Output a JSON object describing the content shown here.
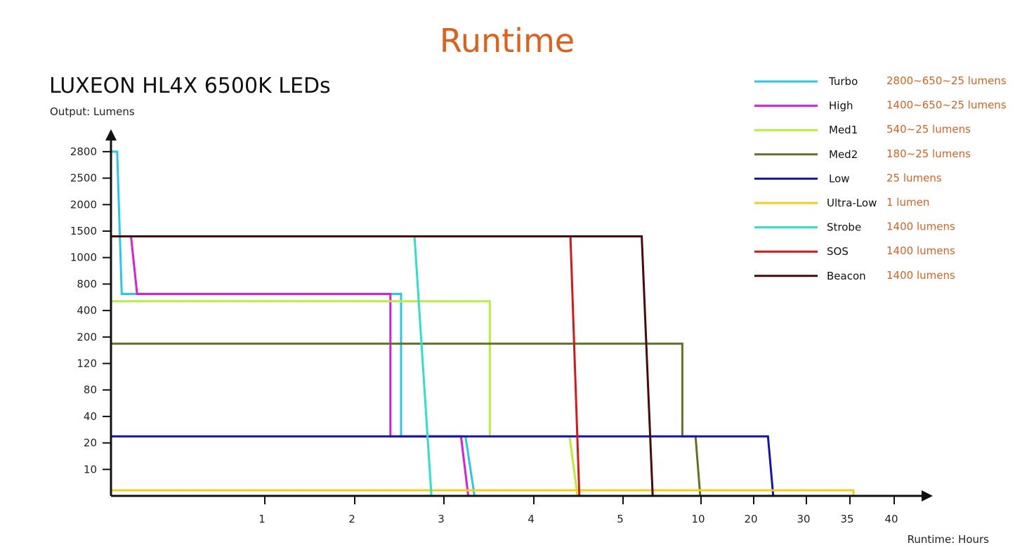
{
  "chart_data": {
    "type": "line",
    "title": "Runtime",
    "subtitle": "LUXEON HL4X 6500K LEDs",
    "ylabel": "Output: Lumens",
    "xlabel": "Runtime: Hours",
    "y_ticks": [
      10,
      20,
      40,
      80,
      120,
      200,
      400,
      800,
      1000,
      1500,
      2000,
      2500,
      2800
    ],
    "x_ticks": [
      1,
      2,
      3,
      4,
      5,
      10,
      20,
      30,
      35,
      40
    ],
    "xlim": [
      0,
      40
    ],
    "ylim": [
      0,
      2800
    ],
    "grid": false,
    "legend_placement": "top-right",
    "series": [
      {
        "name": "Turbo",
        "spec": "2800~650~25 lumens",
        "color": "#29c8e8",
        "points": [
          [
            0,
            2800
          ],
          [
            0.04,
            2800
          ],
          [
            0.07,
            650
          ],
          [
            2.52,
            650
          ],
          [
            2.52,
            25
          ],
          [
            3.24,
            25
          ],
          [
            3.34,
            0
          ]
        ]
      },
      {
        "name": "High",
        "spec": "1400~650~25 lumens",
        "color": "#d81fd8",
        "points": [
          [
            0,
            1400
          ],
          [
            0.13,
            1400
          ],
          [
            0.17,
            650
          ],
          [
            2.4,
            650
          ],
          [
            2.4,
            25
          ],
          [
            3.19,
            25
          ],
          [
            3.27,
            0
          ]
        ]
      },
      {
        "name": "Med1",
        "spec": "540~25 lumens",
        "color": "#b8ee3a",
        "points": [
          [
            0,
            540
          ],
          [
            3.51,
            540
          ],
          [
            3.51,
            25
          ],
          [
            4.4,
            25
          ],
          [
            4.49,
            0
          ]
        ]
      },
      {
        "name": "Med2",
        "spec": "180~25 lumens",
        "color": "#5e7424",
        "points": [
          [
            0,
            180
          ],
          [
            8.8,
            180
          ],
          [
            8.8,
            25
          ],
          [
            9.65,
            25
          ],
          [
            9.95,
            0
          ]
        ]
      },
      {
        "name": "Low",
        "spec": "25 lumens",
        "color": "#1414b4",
        "points": [
          [
            0,
            25
          ],
          [
            22.7,
            25
          ],
          [
            23.7,
            0
          ]
        ]
      },
      {
        "name": "Ultra-Low",
        "spec": "1 lumen",
        "color": "#f2cd1a",
        "points": [
          [
            0,
            1
          ],
          [
            35.4,
            1
          ],
          [
            35.4,
            0
          ]
        ]
      },
      {
        "name": "Strobe",
        "spec": "1400 lumens",
        "color": "#2ee0c8",
        "points": [
          [
            0,
            1400
          ],
          [
            2.67,
            1400
          ],
          [
            2.86,
            0
          ]
        ]
      },
      {
        "name": "SOS",
        "spec": "1400 lumens",
        "color": "#d81818",
        "points": [
          [
            0,
            1400
          ],
          [
            4.41,
            1400
          ],
          [
            4.51,
            0
          ]
        ]
      },
      {
        "name": "Beacon",
        "spec": "1400 lumens",
        "color": "#4a0a0a",
        "points": [
          [
            0,
            1400
          ],
          [
            6.2,
            1400
          ],
          [
            6.9,
            0
          ]
        ]
      }
    ]
  },
  "colors": {
    "title": "#e0601a",
    "spec_text": "#d9621f",
    "axis": "#111111"
  }
}
